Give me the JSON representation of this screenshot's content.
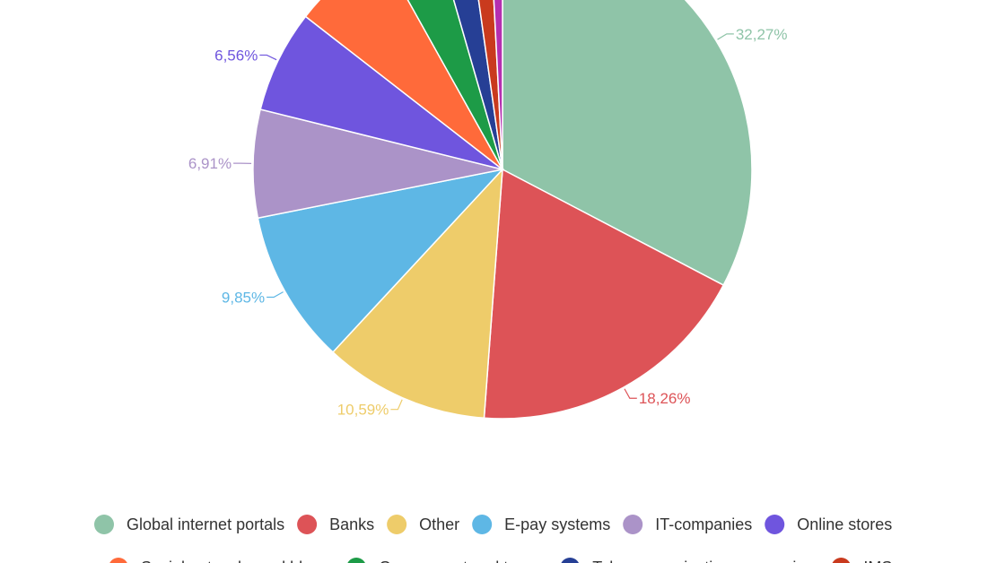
{
  "chart_data": {
    "type": "pie",
    "series": [
      {
        "name": "Global internet portals",
        "value": 32.27,
        "label": "32,27%",
        "color": "#8fc4a8"
      },
      {
        "name": "Banks",
        "value": 18.26,
        "label": "18,26%",
        "color": "#dd5357"
      },
      {
        "name": "Other",
        "value": 10.59,
        "label": "10,59%",
        "color": "#eecc6a"
      },
      {
        "name": "E-pay systems",
        "value": 9.85,
        "label": "9,85%",
        "color": "#5eb7e5"
      },
      {
        "name": "IT-companies",
        "value": 6.91,
        "label": "6,91%",
        "color": "#ab93c8"
      },
      {
        "name": "Online stores",
        "value": 6.56,
        "label": "6,56%",
        "color": "#6f55de"
      },
      {
        "name": "Social networks and blogs",
        "value": 6.3,
        "label": "",
        "color": "#ff6a3a"
      },
      {
        "name": "Government and taxes",
        "value": 3.6,
        "label": "",
        "color": "#1d9b47"
      },
      {
        "name": "Telecommunication companies",
        "value": 2.2,
        "label": "",
        "color": "#263f95"
      },
      {
        "name": "IMS",
        "value": 1.4,
        "label": "",
        "color": "#c93a1e"
      },
      {
        "name": "",
        "value": 0.8,
        "label": "",
        "color": "#b52fb0"
      }
    ],
    "legend": {
      "position": "bottom",
      "row1": [
        "Global internet portals",
        "Banks",
        "Other",
        "E-pay systems",
        "IT-companies",
        "Online stores"
      ],
      "row2": [
        "Social networks and blogs",
        "Government and taxes",
        "Telecommunication companies",
        "IMS"
      ]
    }
  }
}
